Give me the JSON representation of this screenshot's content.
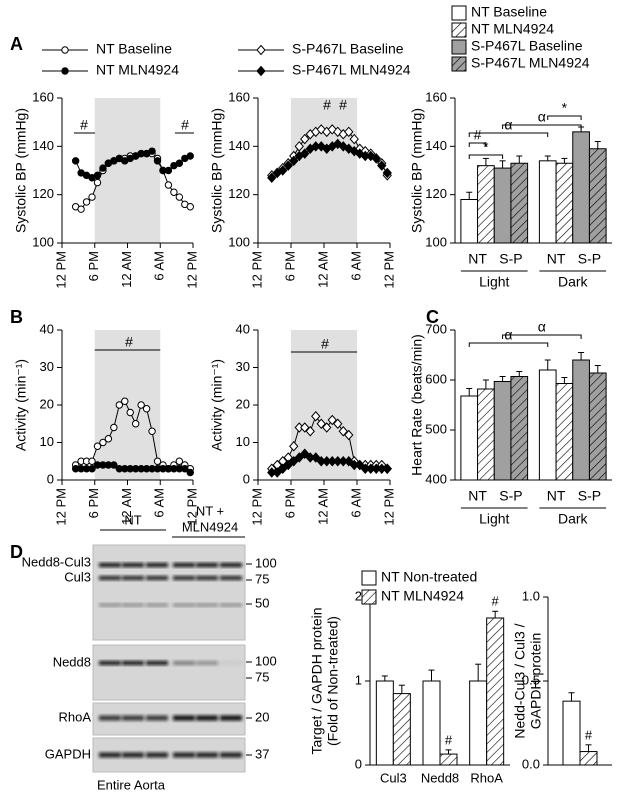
{
  "panel_labels": [
    "A",
    "B",
    "C",
    "D"
  ],
  "blot": {
    "lane_groups": [
      [
        "NT"
      ],
      [
        "NT +",
        "MLN4924"
      ]
    ],
    "rows": [
      {
        "labels": [
          "Nedd8-Cul3",
          "Cul3"
        ],
        "markers": [
          "100",
          "75",
          "50"
        ]
      },
      {
        "labels": [
          "Nedd8"
        ],
        "markers": [
          "100",
          "75"
        ]
      },
      {
        "labels": [
          "RhoA"
        ],
        "markers": [
          "20"
        ]
      },
      {
        "labels": [
          "GAPDH"
        ],
        "markers": [
          "37"
        ]
      }
    ],
    "caption": "Entire Aorta"
  },
  "chart_data": [
    {
      "type": "line",
      "y_label": "Systolic BP (mmHg)",
      "x": [
        2.5,
        3.5,
        4.5,
        5.5,
        6.5,
        7.5,
        8.5,
        9.5,
        10.5,
        11.5,
        12.5,
        13.5,
        14.5,
        15.5,
        16.5,
        17.5,
        18.5,
        19.5,
        20.5,
        21.5,
        22.5,
        23.5
      ],
      "xlim": [
        0,
        24
      ],
      "xticks": [
        {
          "value": 0,
          "label": "12 PM"
        },
        {
          "value": 6,
          "label": "6 PM"
        },
        {
          "value": 12,
          "label": "12 AM"
        },
        {
          "value": 18,
          "label": "6 AM"
        },
        {
          "value": 24,
          "label": "12 PM"
        }
      ],
      "ylim": [
        100,
        160
      ],
      "yticks": [
        100,
        120,
        140,
        160
      ],
      "shaded_x": [
        6,
        18
      ],
      "legend": "top",
      "series": [
        {
          "name": "NT Baseline",
          "color": "#000000",
          "marker": "circle",
          "filled": false,
          "values": [
            115,
            114,
            117,
            119,
            125,
            130,
            133,
            134,
            135,
            135,
            136,
            136,
            137,
            137,
            137,
            135,
            130,
            124,
            121,
            119,
            116,
            115
          ]
        },
        {
          "name": "NT MLN4924",
          "color": "#000000",
          "marker": "circle",
          "filled": true,
          "values": [
            134,
            129,
            128,
            127,
            128,
            131,
            133,
            134,
            135,
            134,
            135,
            136,
            137,
            137,
            138,
            134,
            130,
            130,
            132,
            133,
            135,
            136
          ]
        }
      ],
      "annotations": [
        "#",
        "#"
      ]
    },
    {
      "type": "line",
      "y_label": "Systolic BP (mmHg)",
      "x": [
        2.5,
        3.5,
        4.5,
        5.5,
        6.5,
        7.5,
        8.5,
        9.5,
        10.5,
        11.5,
        12.5,
        13.5,
        14.5,
        15.5,
        16.5,
        17.5,
        18.5,
        19.5,
        20.5,
        21.5,
        22.5,
        23.5
      ],
      "xlim": [
        0,
        24
      ],
      "xticks": [
        {
          "value": 0,
          "label": "12 PM"
        },
        {
          "value": 6,
          "label": "6 PM"
        },
        {
          "value": 12,
          "label": "12 AM"
        },
        {
          "value": 18,
          "label": "6 AM"
        },
        {
          "value": 24,
          "label": "12 PM"
        }
      ],
      "ylim": [
        100,
        160
      ],
      "yticks": [
        100,
        120,
        140,
        160
      ],
      "shaded_x": [
        6,
        18
      ],
      "legend": "top",
      "series": [
        {
          "name": "S-P467L Baseline",
          "color": "#000000",
          "marker": "diamond",
          "filled": false,
          "values": [
            128,
            129,
            131,
            133,
            136,
            140,
            143,
            145,
            146,
            147,
            146,
            147,
            146,
            145,
            146,
            143,
            139,
            138,
            137,
            135,
            133,
            128
          ]
        },
        {
          "name": "S-P467L MLN4924",
          "color": "#000000",
          "marker": "diamond",
          "filled": true,
          "values": [
            127,
            129,
            130,
            132,
            134,
            136,
            137,
            139,
            140,
            140,
            139,
            140,
            141,
            140,
            139,
            138,
            137,
            136,
            136,
            135,
            132,
            129
          ]
        }
      ],
      "annotations": [
        "#",
        "#"
      ]
    },
    {
      "type": "bar",
      "y_label": "Systolic BP (mmHg)",
      "categories": [
        "Light",
        "Dark"
      ],
      "pair_labels": [
        "NT",
        "S-P",
        "NT",
        "S-P"
      ],
      "ylim": [
        100,
        160
      ],
      "yticks": [
        100,
        120,
        140,
        160
      ],
      "legend": "top right",
      "series": [
        {
          "name": "NT Baseline",
          "color": "#ffffff",
          "hatch": false,
          "values": [
            118,
            134
          ],
          "errors": [
            3,
            2
          ]
        },
        {
          "name": "NT MLN4924",
          "color": "#ffffff",
          "hatch": true,
          "values": [
            132,
            133
          ],
          "errors": [
            3,
            2
          ]
        },
        {
          "name": "S-P467L Baseline",
          "color": "#a0a0a0",
          "hatch": false,
          "values": [
            131,
            146
          ],
          "errors": [
            3,
            2
          ]
        },
        {
          "name": "S-P467L MLN4924",
          "color": "#a0a0a0",
          "hatch": true,
          "values": [
            133,
            139
          ],
          "errors": [
            3,
            3
          ]
        }
      ],
      "annotations": [
        "α",
        "α",
        "#",
        "*",
        "*"
      ]
    },
    {
      "type": "line",
      "y_label": "Activity (min⁻¹)",
      "x": [
        2.5,
        3.5,
        4.5,
        5.5,
        6.5,
        7.5,
        8.5,
        9.5,
        10.5,
        11.5,
        12.5,
        13.5,
        14.5,
        15.5,
        16.5,
        17.5,
        18.5,
        19.5,
        20.5,
        21.5,
        22.5,
        23.5
      ],
      "xlim": [
        0,
        24
      ],
      "xticks": [
        {
          "value": 0,
          "label": "12 PM"
        },
        {
          "value": 6,
          "label": "6 PM"
        },
        {
          "value": 12,
          "label": "12 AM"
        },
        {
          "value": 18,
          "label": "6 AM"
        },
        {
          "value": 24,
          "label": "12 PM"
        }
      ],
      "ylim": [
        0,
        40
      ],
      "yticks": [
        0,
        10,
        20,
        30,
        40
      ],
      "shaded_x": [
        6,
        18
      ],
      "series": [
        {
          "name": "NT Baseline",
          "color": "#000000",
          "marker": "circle",
          "filled": false,
          "values": [
            4,
            5,
            5,
            5,
            9,
            10,
            11,
            14,
            20,
            21,
            18,
            15,
            20,
            19,
            13,
            5,
            4,
            3,
            4,
            5,
            4,
            3
          ]
        },
        {
          "name": "NT MLN4924",
          "color": "#000000",
          "marker": "circle",
          "filled": true,
          "values": [
            3,
            3,
            3,
            3,
            4,
            4,
            4,
            4,
            3,
            3,
            3,
            3,
            3,
            3,
            3,
            3,
            3,
            3,
            3,
            3,
            3,
            2
          ]
        }
      ],
      "annotations": [
        "#"
      ]
    },
    {
      "type": "line",
      "y_label": "Activity (min⁻¹)",
      "x": [
        2.5,
        3.5,
        4.5,
        5.5,
        6.5,
        7.5,
        8.5,
        9.5,
        10.5,
        11.5,
        12.5,
        13.5,
        14.5,
        15.5,
        16.5,
        17.5,
        18.5,
        19.5,
        20.5,
        21.5,
        22.5,
        23.5
      ],
      "xlim": [
        0,
        24
      ],
      "xticks": [
        {
          "value": 0,
          "label": "12 PM"
        },
        {
          "value": 6,
          "label": "6 PM"
        },
        {
          "value": 12,
          "label": "12 AM"
        },
        {
          "value": 18,
          "label": "6 AM"
        },
        {
          "value": 24,
          "label": "12 PM"
        }
      ],
      "ylim": [
        0,
        40
      ],
      "yticks": [
        0,
        10,
        20,
        30,
        40
      ],
      "shaded_x": [
        6,
        18
      ],
      "series": [
        {
          "name": "S-P467L Baseline",
          "color": "#000000",
          "marker": "diamond",
          "filled": false,
          "values": [
            3,
            4,
            5,
            6,
            9,
            14,
            14,
            13,
            17,
            15,
            14,
            16,
            15,
            13,
            12,
            5,
            4,
            4,
            4,
            4,
            4,
            3
          ]
        },
        {
          "name": "S-P467L MLN4924",
          "color": "#000000",
          "marker": "diamond",
          "filled": true,
          "values": [
            2,
            2,
            3,
            4,
            5,
            6,
            7,
            6,
            6,
            5,
            5,
            5,
            5,
            5,
            5,
            4,
            4,
            3,
            3,
            3,
            3,
            3
          ]
        }
      ],
      "annotations": [
        "#"
      ]
    },
    {
      "type": "bar",
      "y_label": "Heart Rate (beats/min)",
      "categories": [
        "Light",
        "Dark"
      ],
      "pair_labels": [
        "NT",
        "S-P",
        "NT",
        "S-P"
      ],
      "ylim": [
        400,
        700
      ],
      "yticks": [
        400,
        500,
        600,
        700
      ],
      "series": [
        {
          "name": "NT Baseline",
          "color": "#ffffff",
          "hatch": false,
          "values": [
            568,
            620
          ],
          "errors": [
            15,
            20
          ]
        },
        {
          "name": "NT MLN4924",
          "color": "#ffffff",
          "hatch": true,
          "values": [
            582,
            593
          ],
          "errors": [
            18,
            12
          ]
        },
        {
          "name": "S-P467L Baseline",
          "color": "#a0a0a0",
          "hatch": false,
          "values": [
            597,
            640
          ],
          "errors": [
            10,
            15
          ]
        },
        {
          "name": "S-P467L MLN4924",
          "color": "#a0a0a0",
          "hatch": true,
          "values": [
            607,
            614
          ],
          "errors": [
            10,
            15
          ]
        }
      ],
      "annotations": [
        "α",
        "α"
      ]
    },
    {
      "type": "bar",
      "y_label": [
        "Target / GAPDH protein",
        "(Fold of Non-treated)"
      ],
      "categories": [
        "Cul3",
        "Nedd8",
        "RhoA"
      ],
      "ylim": [
        0,
        2
      ],
      "yticks": [
        0,
        1,
        2
      ],
      "legend": "top left",
      "series": [
        {
          "name": "NT Non-treated",
          "color": "#ffffff",
          "hatch": false,
          "values": [
            1.0,
            1.0,
            1.0
          ],
          "errors": [
            0.06,
            0.13,
            0.2
          ]
        },
        {
          "name": "NT MLN4924",
          "color": "#ffffff",
          "hatch": true,
          "values": [
            0.85,
            0.13,
            1.75
          ],
          "errors": [
            0.1,
            0.05,
            0.08
          ]
        }
      ],
      "annotations": [
        "#",
        "#"
      ]
    },
    {
      "type": "bar",
      "y_label": [
        "Nedd-Cul3 / Cul3 /",
        "GAPDH protein"
      ],
      "categories": [
        null
      ],
      "ylim": [
        0,
        1
      ],
      "yticks": [
        {
          "value": 0,
          "label": "0.0"
        },
        {
          "value": 0.5,
          "label": "0.5"
        },
        {
          "value": 1,
          "label": "1.0"
        }
      ],
      "series": [
        {
          "name": "NT Non-treated",
          "color": "#ffffff",
          "hatch": false,
          "values": [
            0.38
          ],
          "errors": [
            0.05
          ]
        },
        {
          "name": "NT MLN4924",
          "color": "#ffffff",
          "hatch": true,
          "values": [
            0.08
          ],
          "errors": [
            0.04
          ]
        }
      ],
      "annotations": [
        "#"
      ]
    }
  ]
}
